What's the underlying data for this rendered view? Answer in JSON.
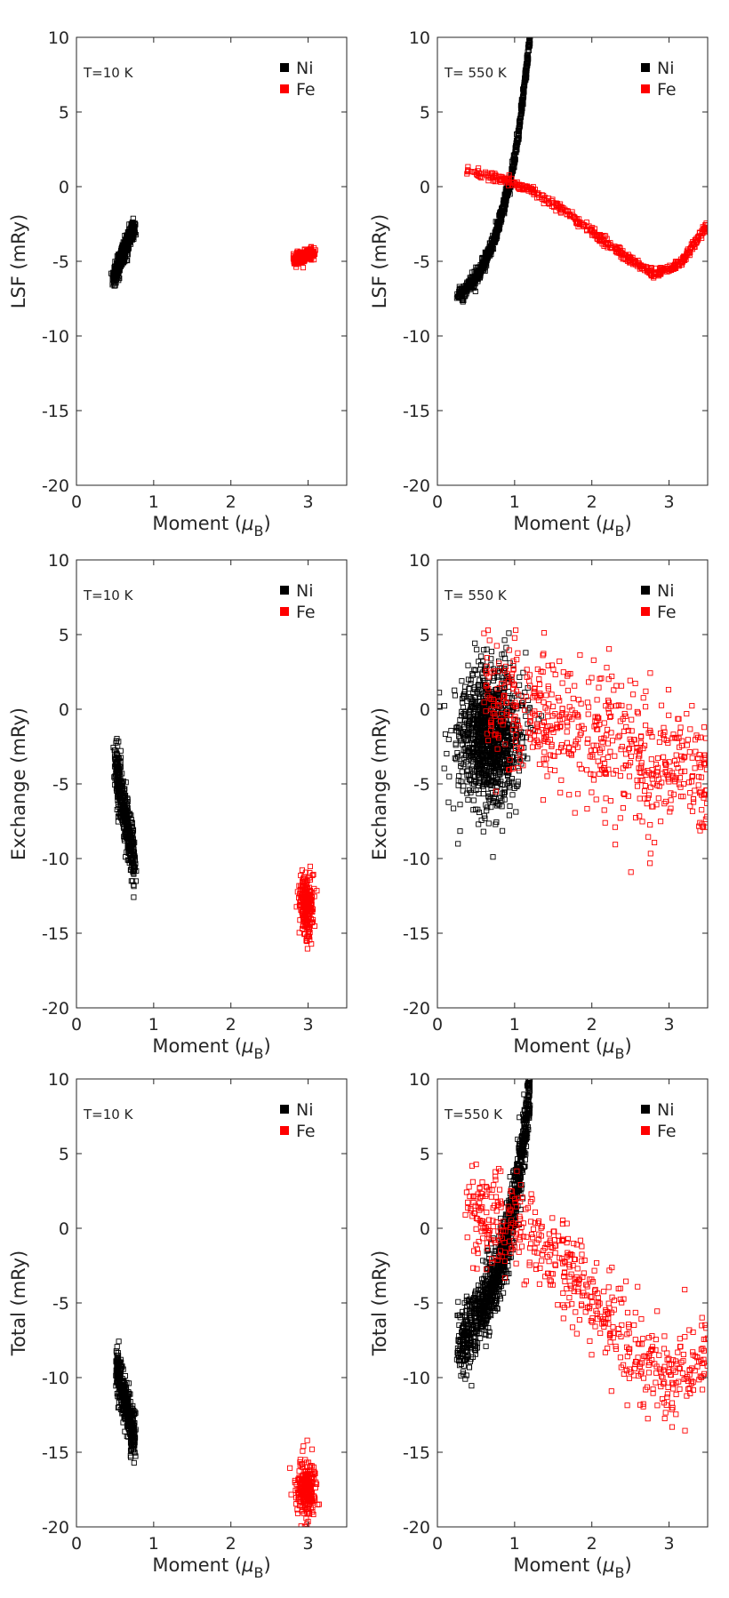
{
  "figure": {
    "layout": "3 rows x 2 columns grid of scatter plots",
    "colors": {
      "Ni": "#000000",
      "Fe": "#ff0000",
      "axis": "#262626"
    },
    "marker": "hollow square"
  },
  "chart_data": [
    {
      "id": "p1",
      "type": "scatter",
      "title": "",
      "xlabel": "Moment (μB)",
      "ylabel": "LSF (mRy)",
      "xlim": [
        0,
        3.5
      ],
      "ylim": [
        -20,
        10
      ],
      "xticks": [
        0,
        1,
        2,
        3
      ],
      "yticks": [
        10,
        5,
        0,
        -5,
        -10,
        -15,
        -20
      ],
      "annotation": "T=10 K",
      "legend": [
        "Ni",
        "Fe"
      ],
      "legend_position": "top-right",
      "series": [
        {
          "name": "Ni",
          "color": "#000000",
          "count": 450,
          "pattern": {
            "kind": "band",
            "x": [
              0.48,
              0.75
            ],
            "y": [
              -6.1,
              -2.6
            ],
            "spread": 0.3
          }
        },
        {
          "name": "Fe",
          "color": "#ff0000",
          "count": 250,
          "pattern": {
            "kind": "band",
            "x": [
              2.82,
              3.08
            ],
            "y": [
              -4.9,
              -4.4
            ],
            "spread": 0.2
          }
        }
      ]
    },
    {
      "id": "p2",
      "type": "scatter",
      "title": "",
      "xlabel": "Moment (μB)",
      "ylabel": "LSF (mRy)",
      "xlim": [
        0,
        3.5
      ],
      "ylim": [
        -20,
        10
      ],
      "xticks": [
        0,
        1,
        2,
        3
      ],
      "yticks": [
        10,
        5,
        0,
        -5,
        -10,
        -15,
        -20
      ],
      "annotation": "T= 550 K",
      "legend": [
        "Ni",
        "Fe"
      ],
      "legend_position": "top-right",
      "series": [
        {
          "name": "Ni",
          "color": "#000000",
          "count": 900,
          "pattern": {
            "kind": "curve",
            "x": [
              0.25,
              1.2
            ],
            "points": [
              [
                0.25,
                -7.4
              ],
              [
                0.45,
                -6.5
              ],
              [
                0.6,
                -5.2
              ],
              [
                0.72,
                -3.8
              ],
              [
                0.85,
                -1.5
              ],
              [
                0.95,
                0.5
              ],
              [
                1.05,
                3.5
              ],
              [
                1.12,
                6.5
              ],
              [
                1.2,
                10
              ]
            ],
            "spread": 0.25
          }
        },
        {
          "name": "Fe",
          "color": "#ff0000",
          "count": 500,
          "pattern": {
            "kind": "curve",
            "x": [
              0.35,
              3.5
            ],
            "points": [
              [
                0.35,
                1.1
              ],
              [
                0.6,
                0.8
              ],
              [
                0.9,
                0.4
              ],
              [
                1.2,
                -0.2
              ],
              [
                1.6,
                -1.5
              ],
              [
                2.0,
                -3.0
              ],
              [
                2.4,
                -4.6
              ],
              [
                2.8,
                -5.8
              ],
              [
                3.0,
                -5.6
              ],
              [
                3.2,
                -4.8
              ],
              [
                3.4,
                -3.3
              ],
              [
                3.5,
                -2.5
              ]
            ],
            "spread": 0.15
          }
        }
      ]
    },
    {
      "id": "p3",
      "type": "scatter",
      "title": "",
      "xlabel": "Moment (μB)",
      "ylabel": "Exchange (mRy)",
      "xlim": [
        0,
        3.5
      ],
      "ylim": [
        -20,
        10
      ],
      "xticks": [
        0,
        1,
        2,
        3
      ],
      "yticks": [
        10,
        5,
        0,
        -5,
        -10,
        -15,
        -20
      ],
      "annotation": "T=10 K",
      "legend": [
        "Ni",
        "Fe"
      ],
      "legend_position": "top-right",
      "series": [
        {
          "name": "Ni",
          "color": "#000000",
          "count": 450,
          "pattern": {
            "kind": "band",
            "x": [
              0.5,
              0.75
            ],
            "y": [
              -3.6,
              -10.4
            ],
            "spread": 0.9
          }
        },
        {
          "name": "Fe",
          "color": "#ff0000",
          "count": 250,
          "pattern": {
            "kind": "blob",
            "x": [
              2.88,
              3.08
            ],
            "y": [
              -15.5,
              -11.0
            ]
          }
        }
      ]
    },
    {
      "id": "p4",
      "type": "scatter",
      "title": "",
      "xlabel": "Moment (μB)",
      "ylabel": "Exchange (mRy)",
      "xlim": [
        0,
        3.5
      ],
      "ylim": [
        -20,
        10
      ],
      "xticks": [
        0,
        1,
        2,
        3
      ],
      "yticks": [
        10,
        5,
        0,
        -5,
        -10,
        -15,
        -20
      ],
      "annotation": "T= 550 K",
      "legend": [
        "Ni",
        "Fe"
      ],
      "legend_position": "top-right",
      "series": [
        {
          "name": "Ni",
          "color": "#000000",
          "count": 1100,
          "pattern": {
            "kind": "blob",
            "x": [
              0.25,
              1.1
            ],
            "y": [
              -6.5,
              3.0
            ]
          }
        },
        {
          "name": "Fe",
          "color": "#ff0000",
          "count": 600,
          "pattern": {
            "kind": "cloud",
            "x": [
              0.6,
              3.5
            ],
            "points": [
              [
                0.6,
                0.5
              ],
              [
                1.0,
                0.0
              ],
              [
                1.5,
                -0.8
              ],
              [
                2.0,
                -1.8
              ],
              [
                2.5,
                -2.8
              ],
              [
                3.0,
                -3.6
              ],
              [
                3.5,
                -4.0
              ]
            ],
            "spread": 2.2
          }
        }
      ]
    },
    {
      "id": "p5",
      "type": "scatter",
      "title": "",
      "xlabel": "Moment (μB)",
      "ylabel": "Total (mRy)",
      "xlim": [
        0,
        3.5
      ],
      "ylim": [
        -20,
        10
      ],
      "xticks": [
        0,
        1,
        2,
        3
      ],
      "yticks": [
        10,
        5,
        0,
        -5,
        -10,
        -15,
        -20
      ],
      "annotation": "T=10 K",
      "legend": [
        "Ni",
        "Fe"
      ],
      "legend_position": "top-right",
      "series": [
        {
          "name": "Ni",
          "color": "#000000",
          "count": 450,
          "pattern": {
            "kind": "band",
            "x": [
              0.52,
              0.75
            ],
            "y": [
              -9.2,
              -14.2
            ],
            "spread": 0.8
          }
        },
        {
          "name": "Fe",
          "color": "#ff0000",
          "count": 250,
          "pattern": {
            "kind": "blob",
            "x": [
              2.85,
              3.1
            ],
            "y": [
              -19.6,
              -15.4
            ]
          }
        }
      ]
    },
    {
      "id": "p6",
      "type": "scatter",
      "title": "",
      "xlabel": "Moment (μB)",
      "ylabel": "Total (mRy)",
      "xlim": [
        0,
        3.5
      ],
      "ylim": [
        -20,
        10
      ],
      "xticks": [
        0,
        1,
        2,
        3
      ],
      "yticks": [
        10,
        5,
        0,
        -5,
        -10,
        -15,
        -20
      ],
      "annotation": "T=550 K",
      "legend": [
        "Ni",
        "Fe"
      ],
      "legend_position": "top-right",
      "series": [
        {
          "name": "Ni",
          "color": "#000000",
          "count": 1100,
          "pattern": {
            "kind": "curve",
            "x": [
              0.25,
              1.2
            ],
            "points": [
              [
                0.25,
                -8.0
              ],
              [
                0.45,
                -6.8
              ],
              [
                0.6,
                -5.2
              ],
              [
                0.75,
                -3.5
              ],
              [
                0.85,
                -1.8
              ],
              [
                0.95,
                0.5
              ],
              [
                1.05,
                3.5
              ],
              [
                1.15,
                7.0
              ],
              [
                1.2,
                9.5
              ]
            ],
            "spread": 1.1
          }
        },
        {
          "name": "Fe",
          "color": "#ff0000",
          "count": 550,
          "pattern": {
            "kind": "cloud",
            "x": [
              0.35,
              3.5
            ],
            "points": [
              [
                0.35,
                1.2
              ],
              [
                0.8,
                0.6
              ],
              [
                1.2,
                -0.5
              ],
              [
                1.6,
                -2.3
              ],
              [
                2.0,
                -4.5
              ],
              [
                2.4,
                -7.0
              ],
              [
                2.8,
                -9.5
              ],
              [
                3.1,
                -10.0
              ],
              [
                3.5,
                -8.0
              ]
            ],
            "spread": 1.6
          }
        }
      ]
    }
  ]
}
